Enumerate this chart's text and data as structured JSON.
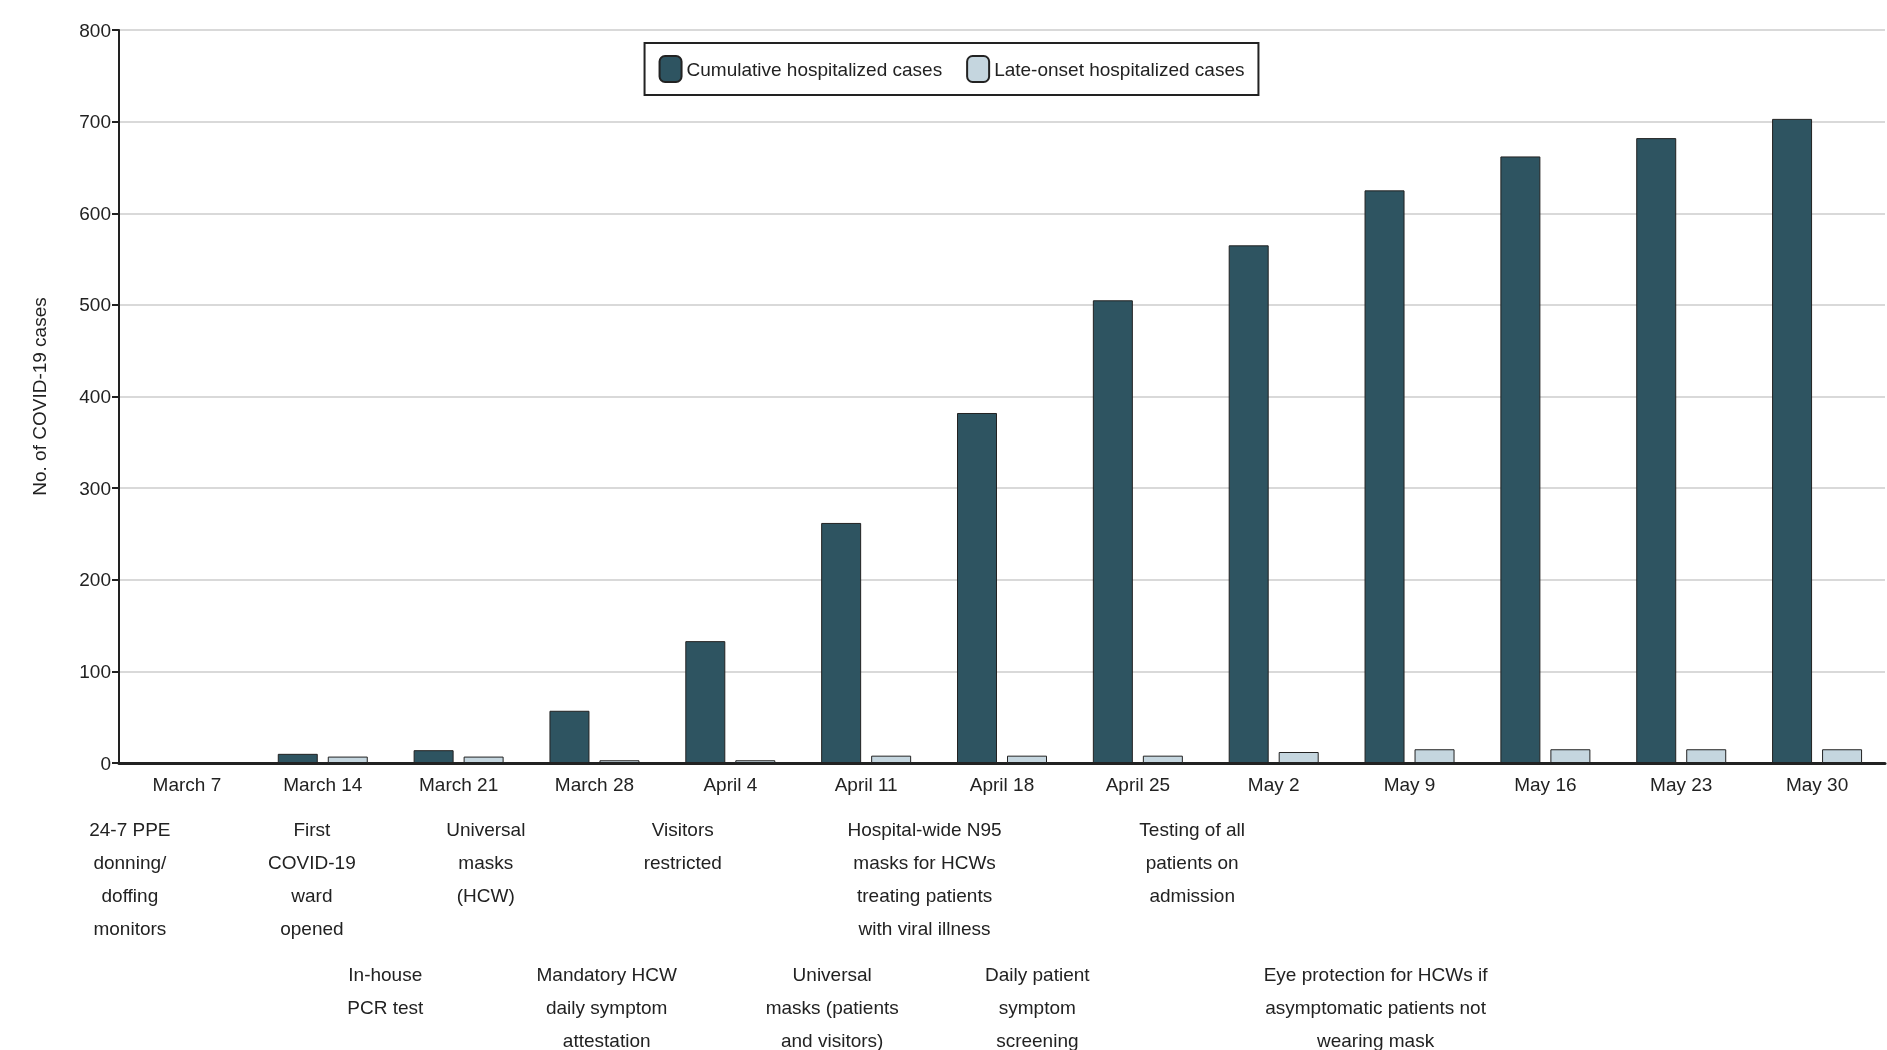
{
  "chart_data": {
    "type": "bar",
    "ylabel": "No. of COVID-19 cases",
    "categories": [
      "March 7",
      "March 14",
      "March 21",
      "March 28",
      "April 4",
      "April 11",
      "April 18",
      "April 25",
      "May 2",
      "May 9",
      "May 16",
      "May 23",
      "May 30"
    ],
    "series": [
      {
        "name": "Cumulative hospitalized cases",
        "color": "#2e5461",
        "values": [
          null,
          10,
          14,
          57,
          133,
          262,
          382,
          505,
          565,
          625,
          662,
          682,
          703
        ]
      },
      {
        "name": "Late-onset hospitalized cases",
        "color": "#c5d6df",
        "values": [
          null,
          7,
          7,
          3,
          3,
          8,
          8,
          8,
          12,
          15,
          15,
          15,
          15
        ]
      }
    ],
    "ylim": [
      0,
      800
    ],
    "yticks": [
      0,
      100,
      200,
      300,
      400,
      500,
      600,
      700,
      800
    ],
    "grid": "y",
    "legend": "top",
    "annotations": [
      "24-7 PPE\ndonning/\ndoffing\nmonitors",
      "First\nCOVID-19\nward\nopened",
      "Universal\nmasks\n(HCW)",
      "Visitors\nrestricted",
      "Hospital-wide N95\nmasks for HCWs\ntreating patients\nwith viral illness",
      "Testing of all\npatients on\nadmission",
      "In-house\nPCR test",
      "Mandatory HCW\ndaily symptom\nattestation",
      "Universal\nmasks (patients\nand visitors)",
      "Daily patient\nsymptom\nscreening",
      "Eye protection for HCWs if\nasymptomatic patients not\nwearing mask"
    ]
  }
}
